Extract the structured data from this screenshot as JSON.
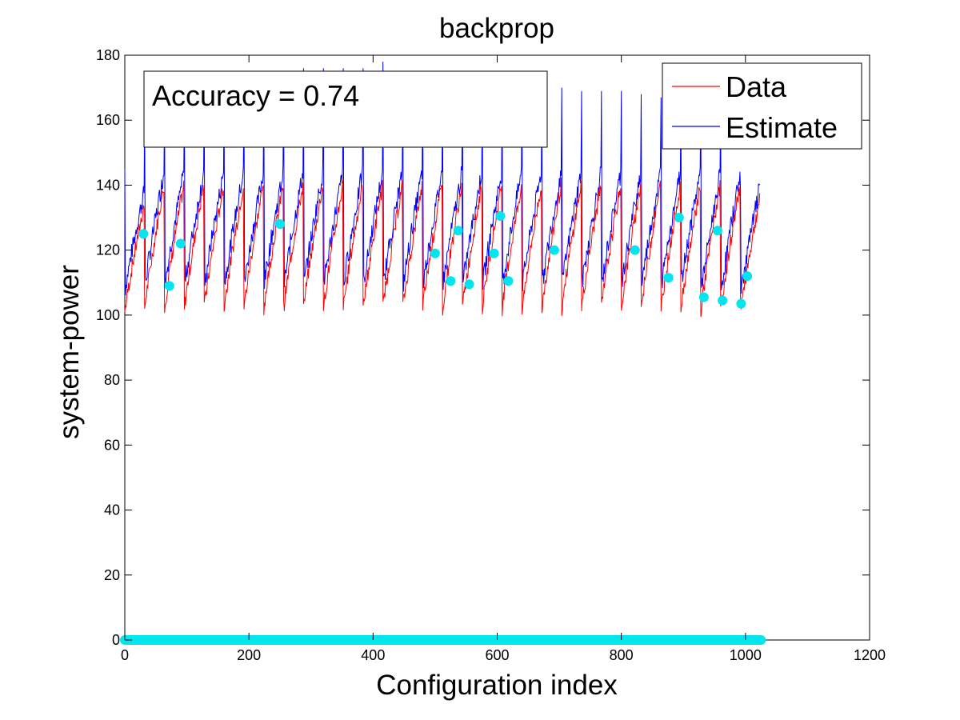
{
  "chart_data": {
    "type": "line",
    "title": "backprop",
    "xlabel": "Configuration index",
    "ylabel": "system-power",
    "xlim": [
      0,
      1200
    ],
    "ylim": [
      0,
      180
    ],
    "xticks": [
      0,
      200,
      400,
      600,
      800,
      1000,
      1200
    ],
    "yticks": [
      0,
      20,
      40,
      60,
      80,
      100,
      120,
      140,
      160,
      180
    ],
    "grid": false,
    "legend_position": "top-right",
    "annotation": "Accuracy = 0.74",
    "cycles": {
      "starts": [
        0,
        32,
        64,
        96,
        128,
        160,
        192,
        224,
        256,
        288,
        320,
        352,
        384,
        416,
        448,
        480,
        512,
        544,
        576,
        608,
        640,
        672,
        704,
        736,
        768,
        800,
        832,
        864,
        896,
        928,
        960,
        992
      ],
      "length": 32,
      "data_min": [
        101,
        102,
        102,
        102,
        102,
        102,
        102,
        102,
        102,
        102,
        102,
        102,
        102,
        102,
        102,
        102,
        102,
        102,
        102,
        102,
        102,
        102,
        102,
        102,
        102,
        102,
        102,
        102,
        102,
        101,
        101,
        101
      ],
      "data_max": [
        134,
        140,
        140,
        140,
        140,
        140,
        140,
        140,
        140,
        140,
        140,
        140,
        140,
        140,
        140,
        140,
        140,
        140,
        140,
        140,
        140,
        140,
        140,
        140,
        140,
        140,
        140,
        140,
        140,
        140,
        140,
        136
      ],
      "estimate_min": [
        107,
        108,
        108,
        108,
        108,
        108,
        108,
        108,
        108,
        108,
        108,
        108,
        108,
        108,
        108,
        108,
        108,
        108,
        108,
        108,
        108,
        108,
        108,
        108,
        108,
        108,
        108,
        108,
        108,
        106,
        106,
        106
      ],
      "estimate_peak": [
        145,
        164,
        165,
        166,
        166,
        167,
        168,
        168,
        170,
        176,
        176,
        176,
        176,
        178,
        174,
        174,
        173,
        172,
        172,
        171,
        171,
        170,
        170,
        169,
        169,
        169,
        168,
        167,
        166,
        166,
        165,
        139
      ]
    },
    "series": [
      {
        "name": "Data",
        "color": "#ff0000"
      },
      {
        "name": "Estimate",
        "color": "#0000ff"
      }
    ],
    "markers": {
      "color": "#00e5ee",
      "points": [
        {
          "x": 30,
          "y": 125
        },
        {
          "x": 72,
          "y": 109
        },
        {
          "x": 90,
          "y": 122
        },
        {
          "x": 250,
          "y": 128
        },
        {
          "x": 500,
          "y": 119
        },
        {
          "x": 525,
          "y": 110.5
        },
        {
          "x": 537,
          "y": 126
        },
        {
          "x": 555,
          "y": 109.5
        },
        {
          "x": 595,
          "y": 119
        },
        {
          "x": 605,
          "y": 130.5
        },
        {
          "x": 618,
          "y": 110.5
        },
        {
          "x": 692,
          "y": 120
        },
        {
          "x": 822,
          "y": 120
        },
        {
          "x": 876,
          "y": 111.5
        },
        {
          "x": 893,
          "y": 130
        },
        {
          "x": 933,
          "y": 105.5
        },
        {
          "x": 955,
          "y": 126
        },
        {
          "x": 963,
          "y": 104.5
        },
        {
          "x": 993,
          "y": 103.5
        },
        {
          "x": 1003,
          "y": 112
        }
      ],
      "baseline": {
        "y": 0,
        "x_from": 0,
        "x_to": 1025
      }
    }
  }
}
